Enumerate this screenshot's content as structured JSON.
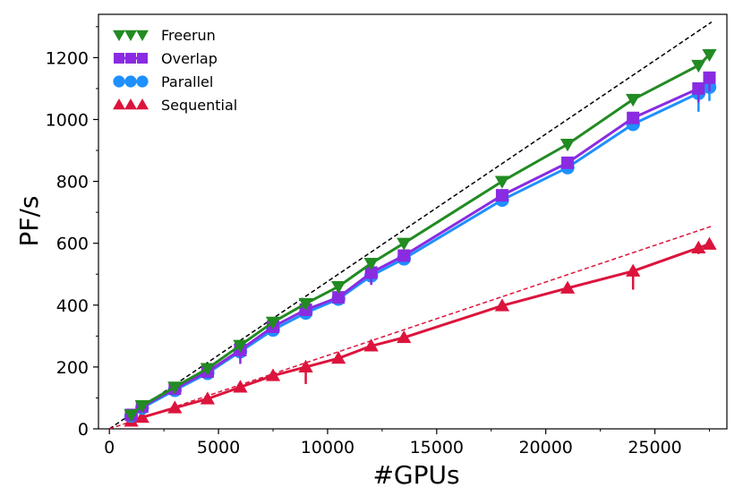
{
  "chart_data": {
    "type": "line",
    "title": "",
    "xlabel": "#GPUs",
    "ylabel": "PF/s",
    "xlim": [
      -500,
      28300
    ],
    "ylim": [
      0,
      1340
    ],
    "xticks": [
      0,
      5000,
      10000,
      15000,
      20000,
      25000
    ],
    "xtick_labels": [
      "0",
      "5000",
      "10000",
      "15000",
      "20000",
      "25000"
    ],
    "yticks": [
      0,
      200,
      400,
      600,
      800,
      1000,
      1200
    ],
    "ytick_labels": [
      "0",
      "200",
      "400",
      "600",
      "800",
      "1000",
      "1200"
    ],
    "grid": false,
    "legend_position": "top-left",
    "x": [
      1000,
      1500,
      3000,
      4500,
      6000,
      7500,
      9000,
      10500,
      12000,
      13500,
      18000,
      21000,
      24000,
      27000,
      27500
    ],
    "series": [
      {
        "name": "Freerun",
        "color": "#228b22",
        "marker": "triangle-down",
        "values": [
          45,
          75,
          135,
          195,
          270,
          345,
          405,
          460,
          535,
          600,
          800,
          920,
          1065,
          1175,
          1210
        ],
        "err_low": [
          0,
          0,
          0,
          0,
          0,
          0,
          0,
          0,
          0,
          0,
          0,
          0,
          0,
          0,
          0
        ]
      },
      {
        "name": "Overlap",
        "color": "#8a2be2",
        "marker": "square",
        "values": [
          45,
          72,
          130,
          185,
          255,
          330,
          385,
          425,
          505,
          560,
          755,
          860,
          1005,
          1100,
          1135
        ],
        "err_low": [
          0,
          0,
          0,
          0,
          45,
          0,
          0,
          0,
          40,
          0,
          0,
          0,
          0,
          45,
          45
        ]
      },
      {
        "name": "Parallel",
        "color": "#1e90ff",
        "marker": "circle",
        "values": [
          42,
          68,
          125,
          180,
          250,
          320,
          375,
          420,
          495,
          550,
          740,
          845,
          985,
          1085,
          1105
        ],
        "err_low": [
          0,
          0,
          0,
          0,
          0,
          0,
          0,
          0,
          0,
          0,
          0,
          0,
          0,
          60,
          45
        ]
      },
      {
        "name": "Sequential",
        "color": "#dc143c",
        "marker": "triangle-up",
        "values": [
          25,
          37,
          68,
          97,
          135,
          172,
          200,
          228,
          268,
          295,
          398,
          455,
          510,
          585,
          597
        ],
        "err_low": [
          0,
          0,
          0,
          0,
          0,
          0,
          55,
          0,
          0,
          0,
          0,
          0,
          60,
          20,
          0
        ]
      }
    ],
    "reference_lines": [
      {
        "name": "ideal Freerun scaling",
        "style": "dashed",
        "color": "#000000",
        "from": [
          0,
          0
        ],
        "to": [
          27600,
          1315
        ]
      },
      {
        "name": "ideal Sequential scaling",
        "style": "dashed",
        "color": "#dc143c",
        "from": [
          0,
          0
        ],
        "to": [
          27600,
          655
        ]
      }
    ]
  }
}
